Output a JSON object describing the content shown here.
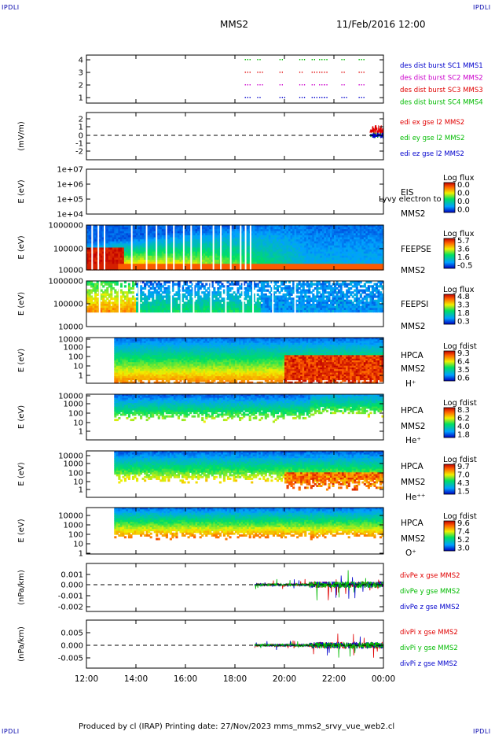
{
  "header": {
    "corner_tl": "IPDLI",
    "corner_tr": "IPDLI",
    "corner_bl": "IPDLI",
    "corner_br": "IPDLI",
    "spacecraft": "MMS2",
    "datetime": "11/Feb/2016 12:00"
  },
  "footer": {
    "text": "Produced by cl (IRAP)   Printing date: 27/Nov/2023   mms_mms2_srvy_vue_web2.cl"
  },
  "time_axis": {
    "ticks": [
      "12:00",
      "14:00",
      "16:00",
      "18:00",
      "20:00",
      "22:00",
      "00:00"
    ]
  },
  "colors": {
    "red": "#e00000",
    "green": "#00bb00",
    "blue": "#0000cc",
    "magenta": "#cc00cc"
  },
  "chart_data": [
    {
      "type": "scatter",
      "id": "burst",
      "yticks": [
        "4",
        "3",
        "2",
        "1"
      ],
      "legend": [
        {
          "label": "des dist burst SC1 MMS1",
          "color": "#0000cc"
        },
        {
          "label": "des dist burst SC2 MMS2",
          "color": "#cc00cc"
        },
        {
          "label": "des dist burst SC3 MMS3",
          "color": "#e00000"
        },
        {
          "label": "des dist burst SC4 MMS4",
          "color": "#00bb00"
        }
      ]
    },
    {
      "type": "line",
      "id": "edi",
      "ylabel": "(mV/m)",
      "yticks": [
        "2",
        "1",
        "0",
        "-1",
        "-2"
      ],
      "legend": [
        {
          "label": "edi ex gse l2 MMS2",
          "color": "#e00000"
        },
        {
          "label": "edi ey gse l2 MMS2",
          "color": "#00bb00"
        },
        {
          "label": "edi ez gse l2 MMS2",
          "color": "#0000cc"
        }
      ]
    },
    {
      "type": "heatmap",
      "id": "eis",
      "ylabel": "E (eV)",
      "yticks": [
        "1e+07",
        "1e+06",
        "1e+05",
        "1e+04"
      ],
      "labels": [
        "EIS",
        "MMS2"
      ],
      "overlay": "Lyvy electron to",
      "cbar_title": "Log flux",
      "cbar_values": [
        "0.0",
        "0.0",
        "0.0",
        "0.0"
      ]
    },
    {
      "type": "heatmap",
      "id": "feepse",
      "ylabel": "E (eV)",
      "yticks": [
        "1000000",
        "100000",
        "10000"
      ],
      "labels": [
        "FEEPSE",
        "MMS2"
      ],
      "cbar_title": "Log flux",
      "cbar_values": [
        "5.7",
        "3.6",
        "1.6",
        "-0.5"
      ]
    },
    {
      "type": "heatmap",
      "id": "feepsi",
      "ylabel": "E (eV)",
      "yticks": [
        "1000000",
        "100000",
        "10000"
      ],
      "labels": [
        "FEEPSI",
        "MMS2"
      ],
      "cbar_title": "Log flux",
      "cbar_values": [
        "4.8",
        "3.3",
        "1.8",
        "0.3"
      ]
    },
    {
      "type": "heatmap",
      "id": "hpca_h",
      "ylabel": "E (eV)",
      "yticks": [
        "10000",
        "1000",
        "100",
        "10",
        "1"
      ],
      "labels": [
        "HPCA",
        "MMS2",
        "H⁺"
      ],
      "cbar_title": "Log fdist",
      "cbar_values": [
        "9.3",
        "6.4",
        "3.5",
        "0.6"
      ]
    },
    {
      "type": "heatmap",
      "id": "hpca_he",
      "ylabel": "E (eV)",
      "yticks": [
        "10000",
        "1000",
        "100",
        "10",
        "1"
      ],
      "labels": [
        "HPCA",
        "MMS2",
        "He⁺"
      ],
      "cbar_title": "Log fdist",
      "cbar_values": [
        "8.3",
        "6.2",
        "4.0",
        "1.8"
      ]
    },
    {
      "type": "heatmap",
      "id": "hpca_hepp",
      "ylabel": "E (eV)",
      "yticks": [
        "10000",
        "1000",
        "100",
        "10",
        "1"
      ],
      "labels": [
        "HPCA",
        "MMS2",
        "He⁺⁺"
      ],
      "cbar_title": "Log fdist",
      "cbar_values": [
        "9.7",
        "7.0",
        "4.3",
        "1.5"
      ]
    },
    {
      "type": "heatmap",
      "id": "hpca_o",
      "ylabel": "E (eV)",
      "yticks": [
        "10000",
        "1000",
        "100",
        "10",
        "1"
      ],
      "labels": [
        "HPCA",
        "MMS2",
        "O⁺"
      ],
      "cbar_title": "Log fdist",
      "cbar_values": [
        "9.6",
        "7.4",
        "5.2",
        "3.0"
      ]
    },
    {
      "type": "line",
      "id": "divpe",
      "ylabel": "(nPa/km)",
      "yticks": [
        "0.001",
        "0.000",
        "-0.001",
        "-0.002"
      ],
      "legend": [
        {
          "label": "divPe x gse MMS2",
          "color": "#e00000"
        },
        {
          "label": "divPe y gse MMS2",
          "color": "#00bb00"
        },
        {
          "label": "divPe z gse MMS2",
          "color": "#0000cc"
        }
      ]
    },
    {
      "type": "line",
      "id": "divpi",
      "ylabel": "(nPa/km)",
      "yticks": [
        "0.005",
        "0.000",
        "-0.005"
      ],
      "legend": [
        {
          "label": "divPi x gse MMS2",
          "color": "#e00000"
        },
        {
          "label": "divPi y gse MMS2",
          "color": "#00bb00"
        },
        {
          "label": "divPi z gse MMS2",
          "color": "#0000cc"
        }
      ]
    }
  ]
}
